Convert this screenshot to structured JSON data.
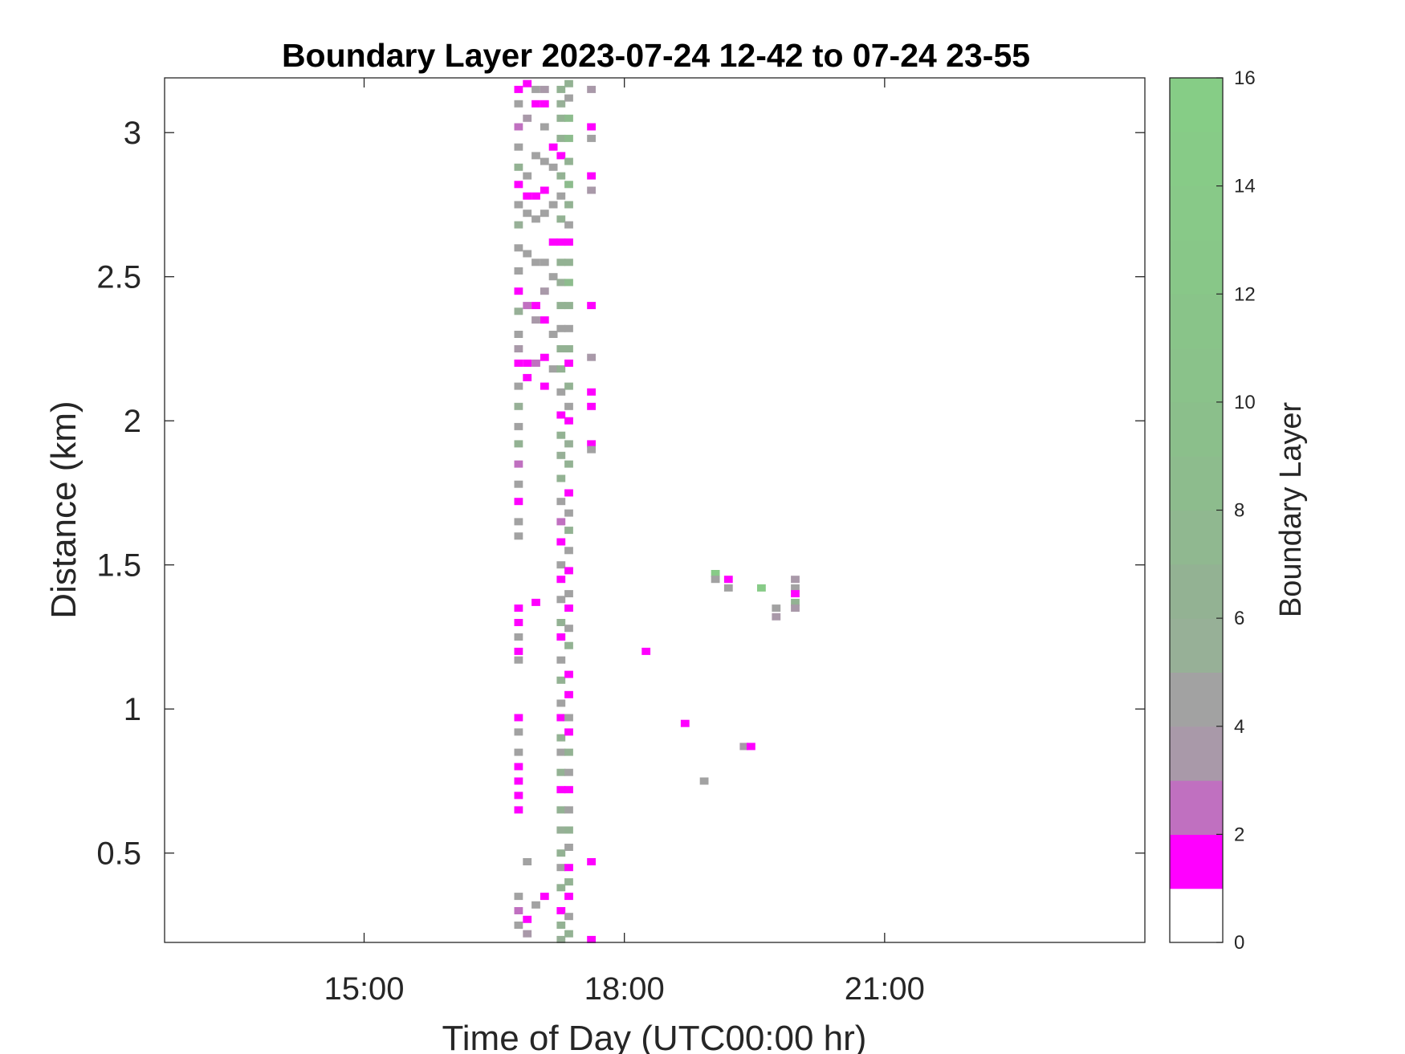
{
  "chart_data": {
    "type": "heatmap",
    "title": "Boundary Layer 2023-07-24 12-42 to 07-24 23-55",
    "xlabel": "Time of Day (UTC00:00 hr)",
    "ylabel": "Distance (km)",
    "colorbar_label": "Boundary Layer",
    "x_unit": "hours of day (UTC)",
    "xlim": [
      12.7,
      24.0
    ],
    "ylim": [
      0.19,
      3.19
    ],
    "x_ticks": [
      15,
      18,
      21
    ],
    "x_tick_labels": [
      "15:00",
      "18:00",
      "21:00"
    ],
    "y_ticks": [
      0.5,
      1,
      1.5,
      2,
      2.5,
      3
    ],
    "y_tick_labels": [
      "0.5",
      "1",
      "1.5",
      "2",
      "2.5",
      "3"
    ],
    "cell_width_hr": 0.1,
    "cell_height_km": 0.025,
    "colorbar": {
      "range": [
        0,
        16
      ],
      "ticks": [
        0,
        2,
        4,
        6,
        8,
        10,
        12,
        14,
        16
      ],
      "tick_labels": [
        "0",
        "2",
        "4",
        "6",
        "8",
        "10",
        "12",
        "14",
        "16"
      ],
      "bands": [
        {
          "from": 0,
          "to": 1,
          "color": "#ffffff"
        },
        {
          "from": 1,
          "to": 2,
          "color": "#ff00ff"
        },
        {
          "from": 2,
          "to": 3,
          "color": "#c070c0"
        },
        {
          "from": 3,
          "to": 4,
          "color": "#a999a9"
        },
        {
          "from": 4,
          "to": 5,
          "color": "#a2a2a2"
        },
        {
          "from": 5,
          "to": 6,
          "color": "#97b097"
        },
        {
          "from": 6,
          "to": 7,
          "color": "#93b293"
        },
        {
          "from": 7,
          "to": 8,
          "color": "#90b890"
        },
        {
          "from": 8,
          "to": 9,
          "color": "#8dbc8d"
        },
        {
          "from": 9,
          "to": 10,
          "color": "#8bbf8b"
        },
        {
          "from": 10,
          "to": 11,
          "color": "#8ac28a"
        },
        {
          "from": 11,
          "to": 12,
          "color": "#89c489"
        },
        {
          "from": 12,
          "to": 13,
          "color": "#88c788"
        },
        {
          "from": 13,
          "to": 14,
          "color": "#88c988"
        },
        {
          "from": 14,
          "to": 15,
          "color": "#87cb87"
        },
        {
          "from": 15,
          "to": 16,
          "color": "#86cd86"
        }
      ]
    },
    "points": [
      {
        "x": 16.78,
        "y": 3.15,
        "v": 1
      },
      {
        "x": 16.78,
        "y": 3.1,
        "v": 4
      },
      {
        "x": 16.78,
        "y": 3.02,
        "v": 2
      },
      {
        "x": 16.78,
        "y": 2.95,
        "v": 4
      },
      {
        "x": 16.78,
        "y": 2.88,
        "v": 6
      },
      {
        "x": 16.78,
        "y": 2.82,
        "v": 1
      },
      {
        "x": 16.78,
        "y": 2.75,
        "v": 4
      },
      {
        "x": 16.78,
        "y": 2.68,
        "v": 5
      },
      {
        "x": 16.78,
        "y": 2.6,
        "v": 4
      },
      {
        "x": 16.78,
        "y": 2.52,
        "v": 4
      },
      {
        "x": 16.78,
        "y": 2.45,
        "v": 1
      },
      {
        "x": 16.78,
        "y": 2.38,
        "v": 5
      },
      {
        "x": 16.78,
        "y": 2.3,
        "v": 4
      },
      {
        "x": 16.78,
        "y": 2.25,
        "v": 3
      },
      {
        "x": 16.78,
        "y": 2.2,
        "v": 1
      },
      {
        "x": 16.78,
        "y": 2.12,
        "v": 4
      },
      {
        "x": 16.78,
        "y": 2.05,
        "v": 5
      },
      {
        "x": 16.78,
        "y": 1.98,
        "v": 4
      },
      {
        "x": 16.78,
        "y": 1.92,
        "v": 6
      },
      {
        "x": 16.78,
        "y": 1.85,
        "v": 2
      },
      {
        "x": 16.78,
        "y": 1.78,
        "v": 4
      },
      {
        "x": 16.78,
        "y": 1.72,
        "v": 1
      },
      {
        "x": 16.78,
        "y": 1.65,
        "v": 4
      },
      {
        "x": 16.78,
        "y": 1.6,
        "v": 4
      },
      {
        "x": 16.78,
        "y": 1.35,
        "v": 1
      },
      {
        "x": 16.78,
        "y": 1.3,
        "v": 1
      },
      {
        "x": 16.78,
        "y": 1.25,
        "v": 4
      },
      {
        "x": 16.78,
        "y": 1.2,
        "v": 1
      },
      {
        "x": 16.78,
        "y": 1.17,
        "v": 4
      },
      {
        "x": 16.78,
        "y": 0.97,
        "v": 1
      },
      {
        "x": 16.78,
        "y": 0.92,
        "v": 4
      },
      {
        "x": 16.78,
        "y": 0.85,
        "v": 4
      },
      {
        "x": 16.78,
        "y": 0.8,
        "v": 1
      },
      {
        "x": 16.78,
        "y": 0.75,
        "v": 1
      },
      {
        "x": 16.78,
        "y": 0.7,
        "v": 1
      },
      {
        "x": 16.78,
        "y": 0.65,
        "v": 1
      },
      {
        "x": 16.78,
        "y": 0.35,
        "v": 4
      },
      {
        "x": 16.78,
        "y": 0.3,
        "v": 2
      },
      {
        "x": 16.78,
        "y": 0.25,
        "v": 4
      },
      {
        "x": 16.88,
        "y": 3.17,
        "v": 1
      },
      {
        "x": 16.88,
        "y": 3.05,
        "v": 3
      },
      {
        "x": 16.88,
        "y": 2.85,
        "v": 4
      },
      {
        "x": 16.88,
        "y": 2.78,
        "v": 1
      },
      {
        "x": 16.88,
        "y": 2.72,
        "v": 4
      },
      {
        "x": 16.88,
        "y": 2.58,
        "v": 4
      },
      {
        "x": 16.88,
        "y": 2.4,
        "v": 2
      },
      {
        "x": 16.88,
        "y": 2.2,
        "v": 1
      },
      {
        "x": 16.88,
        "y": 2.15,
        "v": 1
      },
      {
        "x": 16.88,
        "y": 0.47,
        "v": 4
      },
      {
        "x": 16.88,
        "y": 0.27,
        "v": 1
      },
      {
        "x": 16.88,
        "y": 0.22,
        "v": 3
      },
      {
        "x": 16.98,
        "y": 3.15,
        "v": 4
      },
      {
        "x": 16.98,
        "y": 3.1,
        "v": 1
      },
      {
        "x": 16.98,
        "y": 2.92,
        "v": 4
      },
      {
        "x": 16.98,
        "y": 2.78,
        "v": 1
      },
      {
        "x": 16.98,
        "y": 2.7,
        "v": 4
      },
      {
        "x": 16.98,
        "y": 2.55,
        "v": 4
      },
      {
        "x": 16.98,
        "y": 2.4,
        "v": 1
      },
      {
        "x": 16.98,
        "y": 2.35,
        "v": 3
      },
      {
        "x": 16.98,
        "y": 2.2,
        "v": 2
      },
      {
        "x": 16.98,
        "y": 1.37,
        "v": 1
      },
      {
        "x": 16.98,
        "y": 0.32,
        "v": 4
      },
      {
        "x": 17.08,
        "y": 3.15,
        "v": 3
      },
      {
        "x": 17.08,
        "y": 3.1,
        "v": 1
      },
      {
        "x": 17.08,
        "y": 3.02,
        "v": 4
      },
      {
        "x": 17.08,
        "y": 2.9,
        "v": 4
      },
      {
        "x": 17.08,
        "y": 2.8,
        "v": 1
      },
      {
        "x": 17.08,
        "y": 2.72,
        "v": 4
      },
      {
        "x": 17.08,
        "y": 2.55,
        "v": 4
      },
      {
        "x": 17.08,
        "y": 2.45,
        "v": 3
      },
      {
        "x": 17.08,
        "y": 2.35,
        "v": 1
      },
      {
        "x": 17.08,
        "y": 2.22,
        "v": 1
      },
      {
        "x": 17.08,
        "y": 2.12,
        "v": 1
      },
      {
        "x": 17.08,
        "y": 0.35,
        "v": 1
      },
      {
        "x": 17.18,
        "y": 2.95,
        "v": 1
      },
      {
        "x": 17.18,
        "y": 2.88,
        "v": 4
      },
      {
        "x": 17.18,
        "y": 2.75,
        "v": 4
      },
      {
        "x": 17.18,
        "y": 2.62,
        "v": 1
      },
      {
        "x": 17.18,
        "y": 2.5,
        "v": 4
      },
      {
        "x": 17.18,
        "y": 2.3,
        "v": 4
      },
      {
        "x": 17.18,
        "y": 2.18,
        "v": 4
      },
      {
        "x": 17.27,
        "y": 3.15,
        "v": 6
      },
      {
        "x": 17.27,
        "y": 3.1,
        "v": 5
      },
      {
        "x": 17.27,
        "y": 3.05,
        "v": 6
      },
      {
        "x": 17.27,
        "y": 2.98,
        "v": 6
      },
      {
        "x": 17.27,
        "y": 2.92,
        "v": 1
      },
      {
        "x": 17.27,
        "y": 2.85,
        "v": 6
      },
      {
        "x": 17.27,
        "y": 2.78,
        "v": 4
      },
      {
        "x": 17.27,
        "y": 2.7,
        "v": 6
      },
      {
        "x": 17.27,
        "y": 2.62,
        "v": 1
      },
      {
        "x": 17.27,
        "y": 2.55,
        "v": 6
      },
      {
        "x": 17.27,
        "y": 2.48,
        "v": 5
      },
      {
        "x": 17.27,
        "y": 2.4,
        "v": 6
      },
      {
        "x": 17.27,
        "y": 2.32,
        "v": 4
      },
      {
        "x": 17.27,
        "y": 2.25,
        "v": 6
      },
      {
        "x": 17.27,
        "y": 2.18,
        "v": 6
      },
      {
        "x": 17.27,
        "y": 2.1,
        "v": 4
      },
      {
        "x": 17.27,
        "y": 2.02,
        "v": 1
      },
      {
        "x": 17.27,
        "y": 1.95,
        "v": 6
      },
      {
        "x": 17.27,
        "y": 1.88,
        "v": 5
      },
      {
        "x": 17.27,
        "y": 1.8,
        "v": 6
      },
      {
        "x": 17.27,
        "y": 1.72,
        "v": 4
      },
      {
        "x": 17.27,
        "y": 1.65,
        "v": 2
      },
      {
        "x": 17.27,
        "y": 1.58,
        "v": 1
      },
      {
        "x": 17.27,
        "y": 1.5,
        "v": 4
      },
      {
        "x": 17.27,
        "y": 1.45,
        "v": 1
      },
      {
        "x": 17.27,
        "y": 1.38,
        "v": 4
      },
      {
        "x": 17.27,
        "y": 1.3,
        "v": 6
      },
      {
        "x": 17.27,
        "y": 1.25,
        "v": 1
      },
      {
        "x": 17.27,
        "y": 1.17,
        "v": 4
      },
      {
        "x": 17.27,
        "y": 1.1,
        "v": 6
      },
      {
        "x": 17.27,
        "y": 1.02,
        "v": 4
      },
      {
        "x": 17.27,
        "y": 0.97,
        "v": 1
      },
      {
        "x": 17.27,
        "y": 0.9,
        "v": 6
      },
      {
        "x": 17.27,
        "y": 0.85,
        "v": 4
      },
      {
        "x": 17.27,
        "y": 0.78,
        "v": 6
      },
      {
        "x": 17.27,
        "y": 0.72,
        "v": 1
      },
      {
        "x": 17.27,
        "y": 0.65,
        "v": 6
      },
      {
        "x": 17.27,
        "y": 0.58,
        "v": 5
      },
      {
        "x": 17.27,
        "y": 0.5,
        "v": 6
      },
      {
        "x": 17.27,
        "y": 0.45,
        "v": 4
      },
      {
        "x": 17.27,
        "y": 0.38,
        "v": 6
      },
      {
        "x": 17.27,
        "y": 0.3,
        "v": 1
      },
      {
        "x": 17.27,
        "y": 0.25,
        "v": 6
      },
      {
        "x": 17.27,
        "y": 0.2,
        "v": 5
      },
      {
        "x": 17.36,
        "y": 3.17,
        "v": 6
      },
      {
        "x": 17.36,
        "y": 3.12,
        "v": 4
      },
      {
        "x": 17.36,
        "y": 3.05,
        "v": 8
      },
      {
        "x": 17.36,
        "y": 2.98,
        "v": 8
      },
      {
        "x": 17.36,
        "y": 2.9,
        "v": 6
      },
      {
        "x": 17.36,
        "y": 2.82,
        "v": 8
      },
      {
        "x": 17.36,
        "y": 2.75,
        "v": 6
      },
      {
        "x": 17.36,
        "y": 2.68,
        "v": 4
      },
      {
        "x": 17.36,
        "y": 2.62,
        "v": 1
      },
      {
        "x": 17.36,
        "y": 2.55,
        "v": 6
      },
      {
        "x": 17.36,
        "y": 2.48,
        "v": 8
      },
      {
        "x": 17.36,
        "y": 2.4,
        "v": 6
      },
      {
        "x": 17.36,
        "y": 2.32,
        "v": 4
      },
      {
        "x": 17.36,
        "y": 2.25,
        "v": 6
      },
      {
        "x": 17.36,
        "y": 2.2,
        "v": 1
      },
      {
        "x": 17.36,
        "y": 2.12,
        "v": 6
      },
      {
        "x": 17.36,
        "y": 2.05,
        "v": 4
      },
      {
        "x": 17.36,
        "y": 2.0,
        "v": 1
      },
      {
        "x": 17.36,
        "y": 1.92,
        "v": 5
      },
      {
        "x": 17.36,
        "y": 1.85,
        "v": 6
      },
      {
        "x": 17.36,
        "y": 1.75,
        "v": 1
      },
      {
        "x": 17.36,
        "y": 1.68,
        "v": 4
      },
      {
        "x": 17.36,
        "y": 1.62,
        "v": 6
      },
      {
        "x": 17.36,
        "y": 1.55,
        "v": 4
      },
      {
        "x": 17.36,
        "y": 1.48,
        "v": 1
      },
      {
        "x": 17.36,
        "y": 1.4,
        "v": 4
      },
      {
        "x": 17.36,
        "y": 1.35,
        "v": 1
      },
      {
        "x": 17.36,
        "y": 1.28,
        "v": 4
      },
      {
        "x": 17.36,
        "y": 1.22,
        "v": 6
      },
      {
        "x": 17.36,
        "y": 1.12,
        "v": 1
      },
      {
        "x": 17.36,
        "y": 1.05,
        "v": 1
      },
      {
        "x": 17.36,
        "y": 0.97,
        "v": 4
      },
      {
        "x": 17.36,
        "y": 0.92,
        "v": 1
      },
      {
        "x": 17.36,
        "y": 0.85,
        "v": 6
      },
      {
        "x": 17.36,
        "y": 0.78,
        "v": 4
      },
      {
        "x": 17.36,
        "y": 0.72,
        "v": 1
      },
      {
        "x": 17.36,
        "y": 0.65,
        "v": 4
      },
      {
        "x": 17.36,
        "y": 0.58,
        "v": 6
      },
      {
        "x": 17.36,
        "y": 0.52,
        "v": 4
      },
      {
        "x": 17.36,
        "y": 0.45,
        "v": 1
      },
      {
        "x": 17.36,
        "y": 0.4,
        "v": 6
      },
      {
        "x": 17.36,
        "y": 0.35,
        "v": 1
      },
      {
        "x": 17.36,
        "y": 0.28,
        "v": 4
      },
      {
        "x": 17.36,
        "y": 0.22,
        "v": 6
      },
      {
        "x": 17.62,
        "y": 3.15,
        "v": 3
      },
      {
        "x": 17.62,
        "y": 3.02,
        "v": 1
      },
      {
        "x": 17.62,
        "y": 2.98,
        "v": 4
      },
      {
        "x": 17.62,
        "y": 2.85,
        "v": 1
      },
      {
        "x": 17.62,
        "y": 2.8,
        "v": 3
      },
      {
        "x": 17.62,
        "y": 2.4,
        "v": 1
      },
      {
        "x": 17.62,
        "y": 2.22,
        "v": 3
      },
      {
        "x": 17.62,
        "y": 2.1,
        "v": 1
      },
      {
        "x": 17.62,
        "y": 2.05,
        "v": 1
      },
      {
        "x": 17.62,
        "y": 1.92,
        "v": 1
      },
      {
        "x": 17.62,
        "y": 1.9,
        "v": 4
      },
      {
        "x": 17.62,
        "y": 0.47,
        "v": 1
      },
      {
        "x": 17.62,
        "y": 0.2,
        "v": 1
      },
      {
        "x": 18.25,
        "y": 1.2,
        "v": 1
      },
      {
        "x": 18.7,
        "y": 0.95,
        "v": 1
      },
      {
        "x": 18.92,
        "y": 0.75,
        "v": 4
      },
      {
        "x": 19.05,
        "y": 1.47,
        "v": 14
      },
      {
        "x": 19.05,
        "y": 1.45,
        "v": 4
      },
      {
        "x": 19.2,
        "y": 1.45,
        "v": 1
      },
      {
        "x": 19.2,
        "y": 1.42,
        "v": 4
      },
      {
        "x": 19.38,
        "y": 0.87,
        "v": 3
      },
      {
        "x": 19.46,
        "y": 0.87,
        "v": 1
      },
      {
        "x": 19.58,
        "y": 1.42,
        "v": 14
      },
      {
        "x": 19.75,
        "y": 1.35,
        "v": 4
      },
      {
        "x": 19.75,
        "y": 1.32,
        "v": 3
      },
      {
        "x": 19.97,
        "y": 1.45,
        "v": 3
      },
      {
        "x": 19.97,
        "y": 1.42,
        "v": 4
      },
      {
        "x": 19.97,
        "y": 1.4,
        "v": 1
      },
      {
        "x": 19.97,
        "y": 1.37,
        "v": 6
      },
      {
        "x": 19.97,
        "y": 1.35,
        "v": 3
      }
    ]
  },
  "colors": {
    "axis": "#262626",
    "background": "#ffffff"
  }
}
